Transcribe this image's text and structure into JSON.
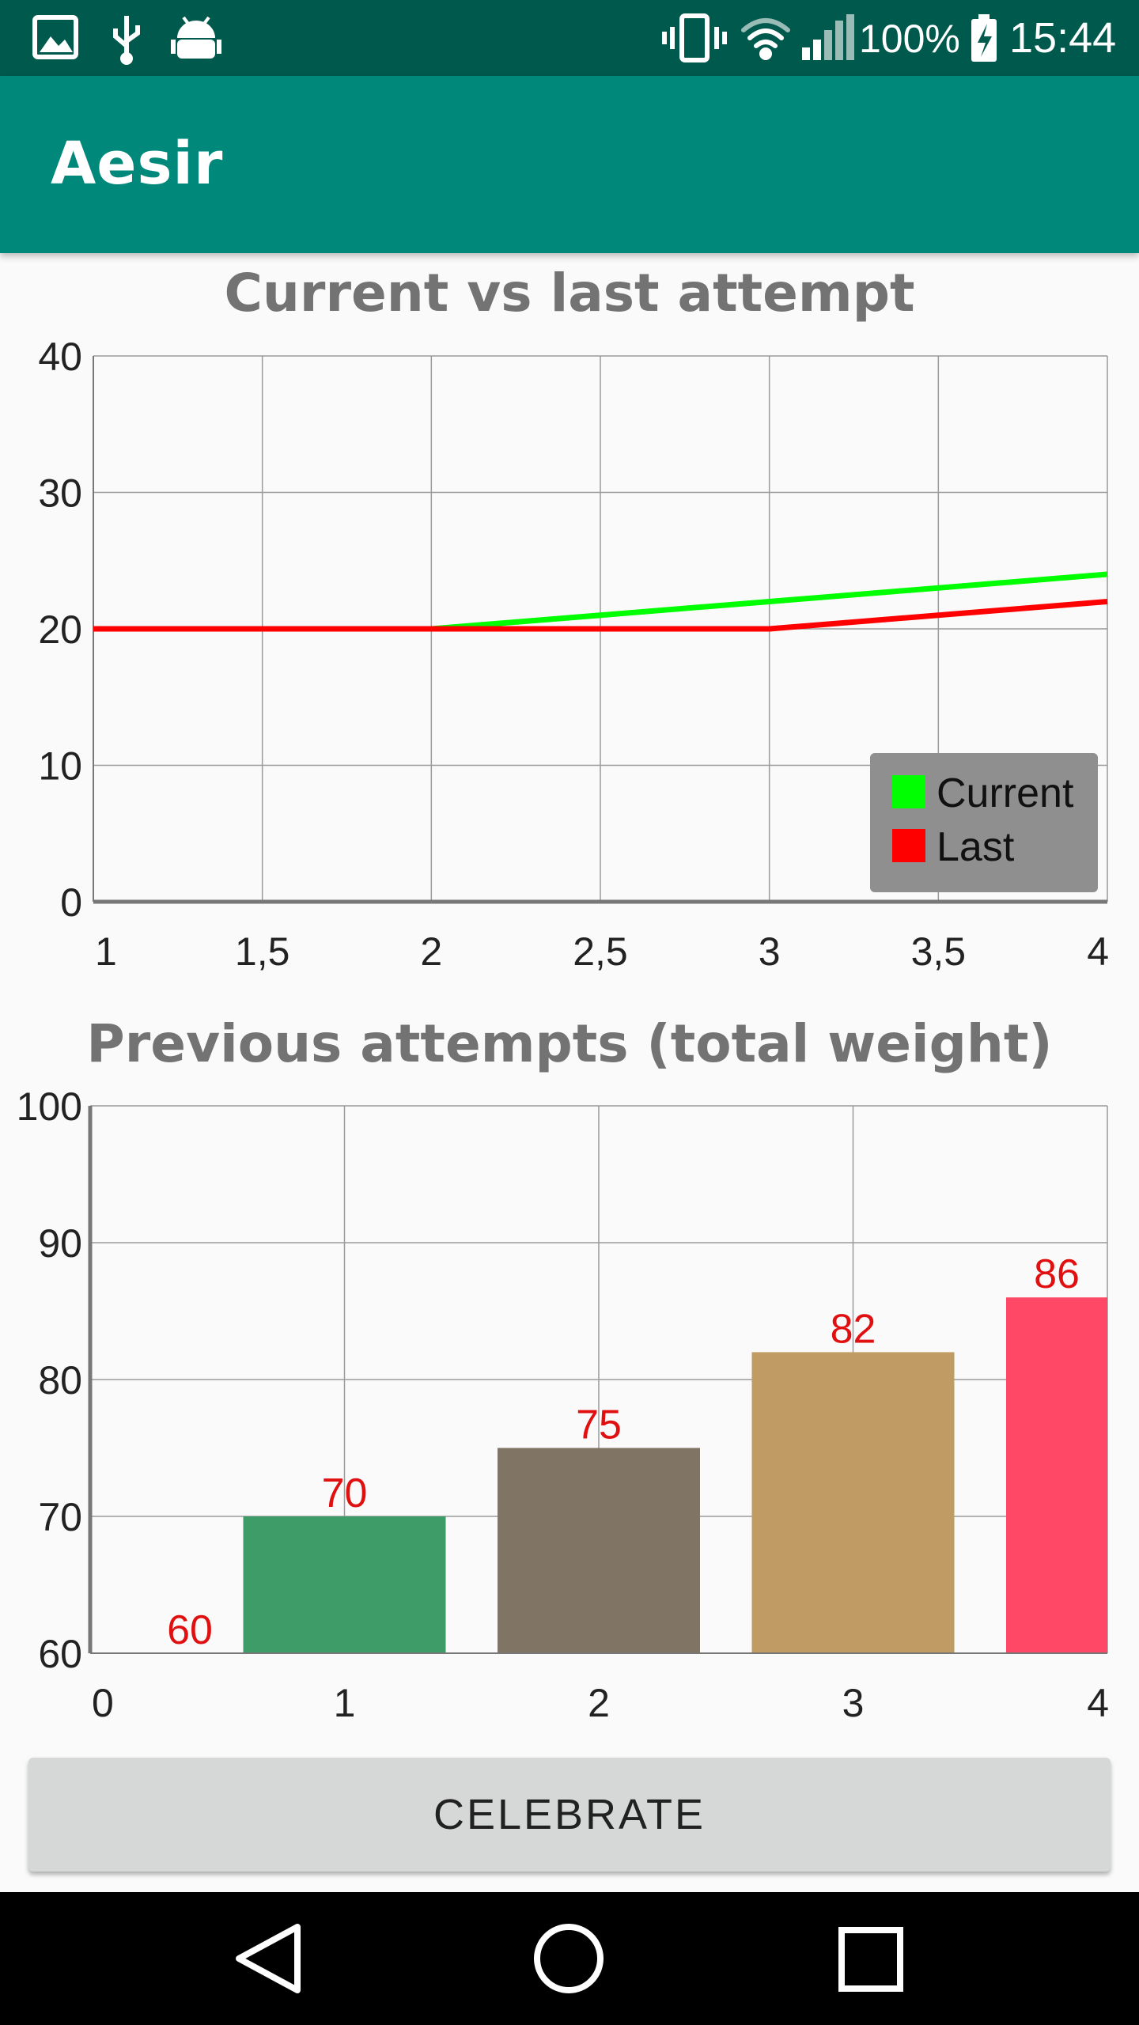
{
  "status_bar": {
    "battery": "100%",
    "time": "15:44",
    "icons": [
      "image-icon",
      "usb-icon",
      "android-debug-icon",
      "vibrate-icon",
      "wifi-icon",
      "signal-icon",
      "battery-charging-icon"
    ]
  },
  "app_bar": {
    "title": "Aesir"
  },
  "colors": {
    "status_bar": "#00594d",
    "app_bar": "#00897b",
    "current": "#00ff00",
    "last": "#ff0000",
    "value_labels": "#e01010"
  },
  "chart_data": [
    {
      "type": "line",
      "title": "Current vs last attempt",
      "xlim": [
        1,
        4
      ],
      "ylim": [
        0,
        40
      ],
      "x_ticks": [
        "1",
        "1,5",
        "2",
        "2,5",
        "3",
        "3,5",
        "4"
      ],
      "y_ticks": [
        "0",
        "10",
        "20",
        "30",
        "40"
      ],
      "grid": true,
      "legend_position": "bottom-right",
      "series": [
        {
          "name": "Current",
          "color": "#00ff00",
          "x": [
            1,
            2,
            3,
            4
          ],
          "y": [
            20,
            20,
            22,
            24
          ]
        },
        {
          "name": "Last",
          "color": "#ff0000",
          "x": [
            1,
            2,
            3,
            4
          ],
          "y": [
            20,
            20,
            20,
            22
          ]
        }
      ]
    },
    {
      "type": "bar",
      "title": "Previous attempts (total weight)",
      "categories": [
        "0",
        "1",
        "2",
        "3",
        "4"
      ],
      "values": [
        60,
        70,
        75,
        82,
        86
      ],
      "value_labels": [
        "60",
        "70",
        "75",
        "82",
        "86"
      ],
      "bar_colors": [
        "#3d9c68",
        "#3d9c68",
        "#807464",
        "#c09c64",
        "#ff4866"
      ],
      "xlim": [
        0,
        4
      ],
      "ylim": [
        60,
        100
      ],
      "y_ticks": [
        "60",
        "70",
        "80",
        "90",
        "100"
      ],
      "grid": true
    }
  ],
  "actions": {
    "celebrate_label": "CELEBRATE"
  },
  "nav_bar": {
    "icons": [
      "back-icon",
      "home-icon",
      "recents-icon"
    ]
  }
}
